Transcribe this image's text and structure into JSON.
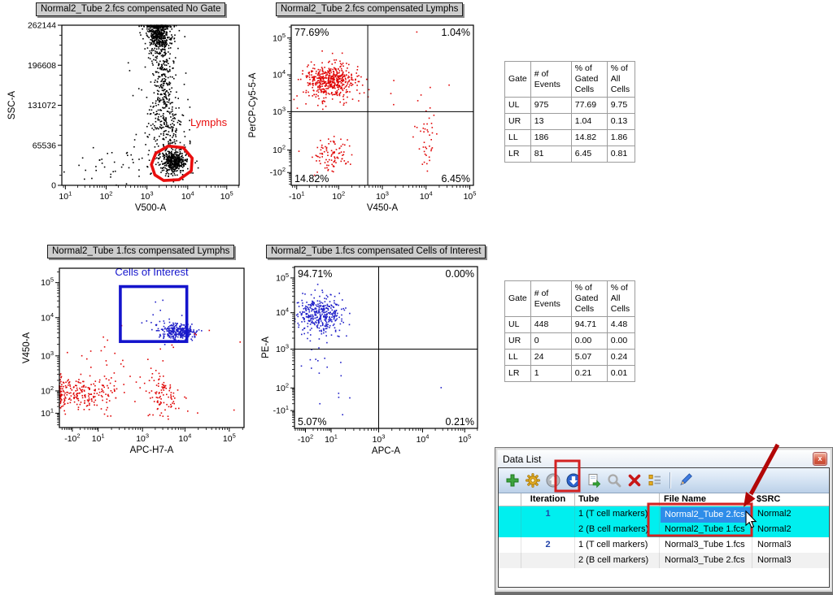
{
  "colors": {
    "gate_red": "#E90E0E",
    "gate_blue": "#1414CC",
    "point_red": "#E00505",
    "point_blue": "#2020C8",
    "row_highlight": "#00EFEF",
    "file_selected_bg": "#2E8DE9",
    "annotation_box": "#D32121",
    "annotation_arrow": "#B20707"
  },
  "chart_data": [
    {
      "type": "scatter",
      "title": "Normal2_Tube 2.fcs compensated No Gate",
      "xlabel": "V500-A",
      "ylabel": "SSC-A",
      "x_scale": "log",
      "y_scale": "linear",
      "x_ticks": [
        {
          "f": 0.02,
          "t": "10",
          "s": "1"
        },
        {
          "f": 0.25,
          "t": "10",
          "s": "2"
        },
        {
          "f": 0.48,
          "t": "10",
          "s": "3"
        },
        {
          "f": 0.71,
          "t": "10",
          "s": "4"
        },
        {
          "f": 0.93,
          "t": "10",
          "s": "5"
        }
      ],
      "y_ticks": [
        {
          "f": 0,
          "t": "0",
          "s": ""
        },
        {
          "f": 0.25,
          "t": "65536",
          "s": ""
        },
        {
          "f": 0.5,
          "t": "131072",
          "s": ""
        },
        {
          "f": 0.75,
          "t": "196608",
          "s": ""
        },
        {
          "f": 1,
          "t": "262144",
          "s": ""
        }
      ],
      "point_color": "#000000",
      "clusters": [
        {
          "n": 500,
          "cx": 0.545,
          "cy": 0.95,
          "sx": 0.034,
          "sy": 0.07,
          "ct": 1
        },
        {
          "n": 260,
          "cx": 0.575,
          "cy": 0.63,
          "sx": 0.035,
          "sy": 0.16
        },
        {
          "n": 140,
          "cx": 0.6,
          "cy": 0.32,
          "sx": 0.05,
          "sy": 0.09
        },
        {
          "n": 330,
          "cx": 0.635,
          "cy": 0.145,
          "sx": 0.03,
          "sy": 0.034
        },
        {
          "n": 90,
          "cx": 0.62,
          "cy": 0.16,
          "sx": 0.055,
          "sy": 0.055
        },
        {
          "n": 40,
          "cx": 0.3,
          "cy": 0.12,
          "sx": 0.13,
          "sy": 0.06
        },
        {
          "n": 50,
          "cx": 0.55,
          "cy": 0.48,
          "sx": 0.11,
          "sy": 0.26
        }
      ],
      "gate": {
        "shape": "polygon",
        "color": "#E90E0E",
        "label": "Lymphs",
        "label_x": 0.725,
        "label_y": 0.37,
        "label_anchor": "start",
        "points": [
          [
            0.525,
            0.065
          ],
          [
            0.505,
            0.13
          ],
          [
            0.53,
            0.2
          ],
          [
            0.6,
            0.245
          ],
          [
            0.685,
            0.235
          ],
          [
            0.735,
            0.17
          ],
          [
            0.73,
            0.09
          ],
          [
            0.66,
            0.035
          ],
          [
            0.575,
            0.03
          ]
        ]
      },
      "quadrants": null
    },
    {
      "type": "scatter",
      "title": "Normal2_Tube 2.fcs compensated Lymphs",
      "xlabel": "V450-A",
      "ylabel": "PerCP-Cy5-5-A",
      "x_scale": "biexp",
      "y_scale": "biexp",
      "x_ticks": [
        {
          "f": 0.03,
          "t": "-10",
          "s": "1"
        },
        {
          "f": 0.26,
          "t": "10",
          "s": "2"
        },
        {
          "f": 0.5,
          "t": "10",
          "s": "3"
        },
        {
          "f": 0.74,
          "t": "10",
          "s": "4"
        },
        {
          "f": 0.98,
          "t": "10",
          "s": "5"
        }
      ],
      "y_ticks": [
        {
          "f": 0.08,
          "t": "-10",
          "s": "2"
        },
        {
          "f": 0.22,
          "t": "10",
          "s": "2"
        },
        {
          "f": 0.46,
          "t": "10",
          "s": "3"
        },
        {
          "f": 0.69,
          "t": "10",
          "s": "4"
        },
        {
          "f": 0.92,
          "t": "10",
          "s": "5"
        }
      ],
      "point_color": "#E00505",
      "clusters": [
        {
          "n": 430,
          "cx": 0.215,
          "cy": 0.655,
          "sx": 0.07,
          "sy": 0.052
        },
        {
          "n": 70,
          "cx": 0.22,
          "cy": 0.63,
          "sx": 0.12,
          "sy": 0.1
        },
        {
          "n": 95,
          "cx": 0.215,
          "cy": 0.185,
          "sx": 0.055,
          "sy": 0.06
        },
        {
          "n": 40,
          "cx": 0.745,
          "cy": 0.245,
          "sx": 0.032,
          "sy": 0.12
        },
        {
          "n": 6,
          "cx": 0.6,
          "cy": 0.5,
          "sx": 0.15,
          "sy": 0.18
        }
      ],
      "gate": null,
      "quadrants": {
        "vx": 0.42,
        "hy": 0.46,
        "tl": "77.69%",
        "tr": "1.04%",
        "bl": "14.82%",
        "br": "6.45%"
      }
    },
    {
      "type": "scatter",
      "title": "Normal2_Tube 1.fcs compensated Lymphs",
      "xlabel": "APC-H7-A",
      "ylabel": "V450-A",
      "x_scale": "biexp",
      "y_scale": "log",
      "x_ticks": [
        {
          "f": 0.07,
          "t": "-10",
          "s": "2"
        },
        {
          "f": 0.21,
          "t": "10",
          "s": "1"
        },
        {
          "f": 0.45,
          "t": "10",
          "s": "3"
        },
        {
          "f": 0.68,
          "t": "10",
          "s": "4"
        },
        {
          "f": 0.92,
          "t": "10",
          "s": "5"
        }
      ],
      "y_ticks": [
        {
          "f": 0.09,
          "t": "10",
          "s": "1"
        },
        {
          "f": 0.23,
          "t": "10",
          "s": "2"
        },
        {
          "f": 0.45,
          "t": "10",
          "s": "3"
        },
        {
          "f": 0.69,
          "t": "10",
          "s": "4"
        },
        {
          "f": 0.91,
          "t": "10",
          "s": "5"
        }
      ],
      "point_color": "#E00505",
      "clusters": [
        {
          "n": 260,
          "cx": 0.655,
          "cy": 0.6,
          "sx": 0.042,
          "sy": 0.02,
          "col": "#2020C8"
        },
        {
          "n": 60,
          "cx": 0.6,
          "cy": 0.615,
          "sx": 0.055,
          "sy": 0.035,
          "col": "#2020C8"
        },
        {
          "n": 5,
          "cx": 0.56,
          "cy": 0.72,
          "sx": 0.05,
          "sy": 0.07,
          "col": "#2020C8"
        },
        {
          "n": 240,
          "cx": 0.1,
          "cy": 0.225,
          "sx": 0.115,
          "sy": 0.048,
          "clf": 1,
          "col": "#E00505"
        },
        {
          "n": 90,
          "cx": 0.555,
          "cy": 0.21,
          "sx": 0.045,
          "sy": 0.07,
          "col": "#E00505"
        },
        {
          "n": 30,
          "cx": 0.32,
          "cy": 0.42,
          "sx": 0.14,
          "sy": 0.1,
          "col": "#E00505"
        },
        {
          "n": 4,
          "cx": 0.8,
          "cy": 0.6,
          "sx": 0.1,
          "sy": 0.03,
          "col": "#E00505"
        },
        {
          "n": 12,
          "cx": 0.45,
          "cy": 0.1,
          "sx": 0.2,
          "sy": 0.05,
          "col": "#E00505"
        }
      ],
      "gate": {
        "shape": "rect",
        "color": "#1414CC",
        "label": "Cells of Interest",
        "label_x": 0.5,
        "label_y": 0.955,
        "label_anchor": "middle",
        "x0": 0.33,
        "y0": 0.54,
        "x1": 0.69,
        "y1": 0.885
      },
      "quadrants": null
    },
    {
      "type": "scatter",
      "title": "Normal2_Tube 1.fcs compensated Cells of Interest",
      "xlabel": "APC-A",
      "ylabel": "PE-A",
      "x_scale": "biexp",
      "y_scale": "biexp",
      "x_ticks": [
        {
          "f": 0.06,
          "t": "-10",
          "s": "2"
        },
        {
          "f": 0.2,
          "t": "10",
          "s": "1"
        },
        {
          "f": 0.46,
          "t": "10",
          "s": "3"
        },
        {
          "f": 0.7,
          "t": "10",
          "s": "4"
        },
        {
          "f": 0.93,
          "t": "10",
          "s": "5"
        }
      ],
      "y_ticks": [
        {
          "f": 0.11,
          "t": "-10",
          "s": "1"
        },
        {
          "f": 0.25,
          "t": "10",
          "s": "2"
        },
        {
          "f": 0.49,
          "t": "10",
          "s": "3"
        },
        {
          "f": 0.715,
          "t": "10",
          "s": "4"
        },
        {
          "f": 0.93,
          "t": "10",
          "s": "5"
        }
      ],
      "point_color": "#2020C8",
      "clusters": [
        {
          "n": 310,
          "cx": 0.135,
          "cy": 0.715,
          "sx": 0.062,
          "sy": 0.05,
          "clf": 1
        },
        {
          "n": 45,
          "cx": 0.165,
          "cy": 0.61,
          "sx": 0.07,
          "sy": 0.05
        },
        {
          "n": 10,
          "cx": 0.15,
          "cy": 0.4,
          "sx": 0.05,
          "sy": 0.05
        },
        {
          "n": 5,
          "cx": 0.16,
          "cy": 0.17,
          "sx": 0.06,
          "sy": 0.05
        },
        {
          "n": 1,
          "cx": 0.8,
          "cy": 0.25,
          "sx": 0.004,
          "sy": 0.004
        }
      ],
      "gate": null,
      "quadrants": {
        "vx": 0.46,
        "hy": 0.49,
        "tl": "94.71%",
        "tr": "0.00%",
        "bl": "5.07%",
        "br": "0.21%"
      }
    },
    {
      "type": "table",
      "columns": [
        "Gate",
        "# of\nEvents",
        "% of\nGated\nCells",
        "% of\nAll\nCells"
      ],
      "rows": [
        [
          "UL",
          "975",
          "77.69",
          "9.75"
        ],
        [
          "UR",
          "13",
          "1.04",
          "0.13"
        ],
        [
          "LL",
          "186",
          "14.82",
          "1.86"
        ],
        [
          "LR",
          "81",
          "6.45",
          "0.81"
        ]
      ]
    },
    {
      "type": "table",
      "columns": [
        "Gate",
        "# of\nEvents",
        "% of\nGated\nCells",
        "% of\nAll\nCells"
      ],
      "rows": [
        [
          "UL",
          "448",
          "94.71",
          "4.48"
        ],
        [
          "UR",
          "0",
          "0.00",
          "0.00"
        ],
        [
          "LL",
          "24",
          "5.07",
          "0.24"
        ],
        [
          "LR",
          "1",
          "0.21",
          "0.01"
        ]
      ]
    }
  ],
  "data_list": {
    "title": "Data List",
    "close_glyph": "x",
    "toolbar_icons": [
      "add",
      "settings",
      "move-up",
      "move-down",
      "export",
      "search",
      "delete",
      "sort",
      "edit"
    ],
    "columns": [
      "Iteration",
      "Tube",
      "File Name",
      "$SRC"
    ],
    "rows": [
      {
        "iteration": "1",
        "tube": "1 (T cell markers)",
        "file": "Normal2_Tube 2.fcs",
        "src": "Normal2",
        "highlighted": true,
        "file_selected": true
      },
      {
        "iteration": "",
        "tube": "2 (B cell markers)",
        "file": "Normal2_Tube 1.fcs",
        "src": "Normal2",
        "highlighted": true,
        "file_selected": false
      },
      {
        "iteration": "2",
        "tube": "1 (T cell markers)",
        "file": "Normal3_Tube 1.fcs",
        "src": "Normal3",
        "highlighted": false,
        "file_selected": false
      },
      {
        "iteration": "",
        "tube": "2 (B cell markers)",
        "file": "Normal3_Tube 2.fcs",
        "src": "Normal3",
        "highlighted": false,
        "file_selected": false
      }
    ]
  },
  "annotations": {
    "box_color": "#D32121",
    "arrow_color": "#B20707"
  }
}
